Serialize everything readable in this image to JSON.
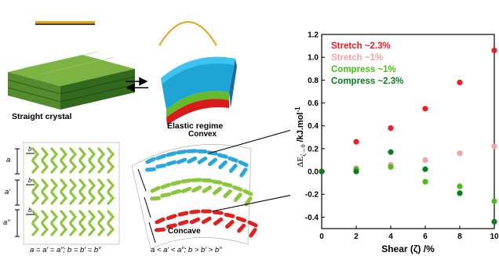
{
  "scheme": {
    "straight_label": "Straight crystal",
    "elastic_label": "Elastic regime",
    "convex_label": "Convex",
    "concave_label": "Concave",
    "left_formula": "a = a′ = a″; b = b′ = b″",
    "right_formula": "a < a′ < a″; b > b′ > b″",
    "layer_labels": [
      "a",
      "a′",
      "a″"
    ],
    "b_label": "b",
    "colors": {
      "blue": "#2aa7de",
      "green": "#8cc63f",
      "red": "#e0221f",
      "orange": "#e8a317"
    }
  },
  "chart_data": {
    "type": "scatter",
    "xlabel": "Shear (ζ) /%",
    "ylabel": "ΔE",
    "ylabel_sub": "ζ→0",
    "ylabel_unit": " /kJ.mol",
    "ylabel_sup": "-1",
    "xlim": [
      0,
      10
    ],
    "ylim": [
      -0.5,
      1.2
    ],
    "xticks": [
      "0",
      "2",
      "4",
      "6",
      "8",
      "10"
    ],
    "yticks": [
      "-0.4",
      "-0.2",
      "0.0",
      "0.2",
      "0.4",
      "0.6",
      "0.8",
      "1.0",
      "1.2"
    ],
    "legend_position": "top-left",
    "series": [
      {
        "name": "Stretch ~2.3%",
        "color": "#ee1c25",
        "x": [
          0,
          2,
          4,
          6,
          8,
          10
        ],
        "y": [
          0.0,
          0.26,
          0.38,
          0.55,
          0.78,
          1.06
        ]
      },
      {
        "name": "Stretch ~1%",
        "color": "#f4a3a3",
        "x": [
          0,
          2,
          4,
          6,
          8,
          10
        ],
        "y": [
          0.0,
          0.03,
          0.06,
          0.1,
          0.16,
          0.22
        ]
      },
      {
        "name": "Compress ~1%",
        "color": "#4cbb17",
        "x": [
          0,
          2,
          4,
          6,
          8,
          10
        ],
        "y": [
          0.0,
          0.02,
          0.04,
          -0.09,
          -0.13,
          -0.26
        ]
      },
      {
        "name": "Compress ~2.3%",
        "color": "#0a7d1e",
        "x": [
          0,
          2,
          4,
          6,
          8,
          10
        ],
        "y": [
          0.0,
          0.0,
          0.17,
          0.02,
          -0.19,
          -0.44
        ]
      }
    ]
  }
}
